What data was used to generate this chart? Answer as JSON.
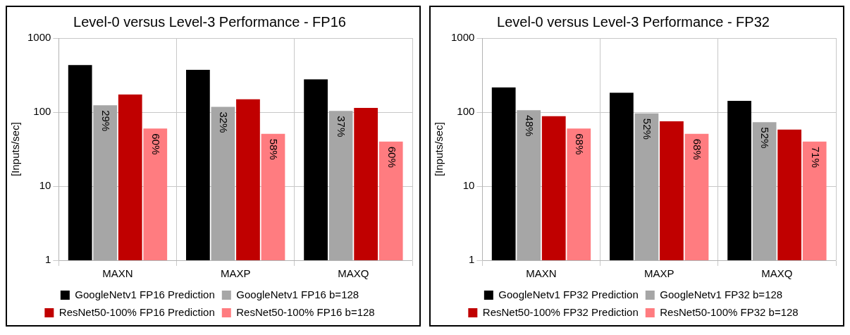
{
  "chart_data": [
    {
      "type": "bar",
      "title": "Level-0 versus Level-3 Performance - FP16",
      "ylabel": "[Inputs/sec]",
      "categories": [
        "MAXN",
        "MAXP",
        "MAXQ"
      ],
      "log": true,
      "ylim": [
        1,
        1000
      ],
      "yticks": [
        1,
        10,
        100,
        1000
      ],
      "grid": true,
      "legend": "bottom",
      "series": [
        {
          "name": "GoogleNetv1 FP16 Prediction",
          "color": "#000000",
          "values": [
            432,
            373,
            278
          ]
        },
        {
          "name": "GoogleNetv1 FP16 b=128",
          "color": "#a6a6a6",
          "values": [
            124,
            118,
            104
          ]
        },
        {
          "name": "ResNet50-100% FP16 Prediction",
          "color": "#c00000",
          "values": [
            173,
            149,
            114
          ]
        },
        {
          "name": "ResNet50-100% FP16 b=128",
          "color": "#ff7c80",
          "values": [
            60,
            51,
            40
          ]
        }
      ],
      "annotations": [
        {
          "text": "29%",
          "x": "MAXN",
          "y": 124
        },
        {
          "text": "32%",
          "x": "MAXP",
          "y": 118
        },
        {
          "text": "37%",
          "x": "MAXQ",
          "y": 104
        },
        "60%",
        "58%",
        "60%"
      ]
    },
    {
      "type": "bar",
      "title": "Level-0 versus Level-3 Performance - FP32",
      "ylabel": "[Inputs/sec]",
      "categories": [
        "MAXN",
        "MAXP",
        "MAXQ"
      ],
      "log": true,
      "ylim": [
        1,
        1000
      ],
      "yticks": [
        1,
        10,
        100,
        1000
      ],
      "grid": true,
      "legend": "bottom",
      "series": [
        {
          "name": "GoogleNetv1 FP32 Prediction",
          "color": "#000000",
          "values": [
            215,
            183,
            142
          ]
        },
        {
          "name": "GoogleNetv1 FP32 b=128",
          "color": "#a6a6a6",
          "values": [
            106,
            96,
            73
          ]
        },
        {
          "name": "ResNet50-100% FP32 Prediction",
          "color": "#c00000",
          "values": [
            88,
            75,
            58
          ]
        },
        {
          "name": "ResNet50-100% FP32 b=128",
          "color": "#ff7c80",
          "values": [
            60,
            51,
            40
          ]
        }
      ],
      "annotations": [
        {
          "text": "48%",
          "x": "MAXN",
          "y": 106
        },
        {
          "text": "52%",
          "x": "MAXP",
          "y": 96
        },
        {
          "text": "52%",
          "x": "MAXQ",
          "y": 73
        },
        "68%",
        "68%",
        "71%"
      ]
    }
  ]
}
